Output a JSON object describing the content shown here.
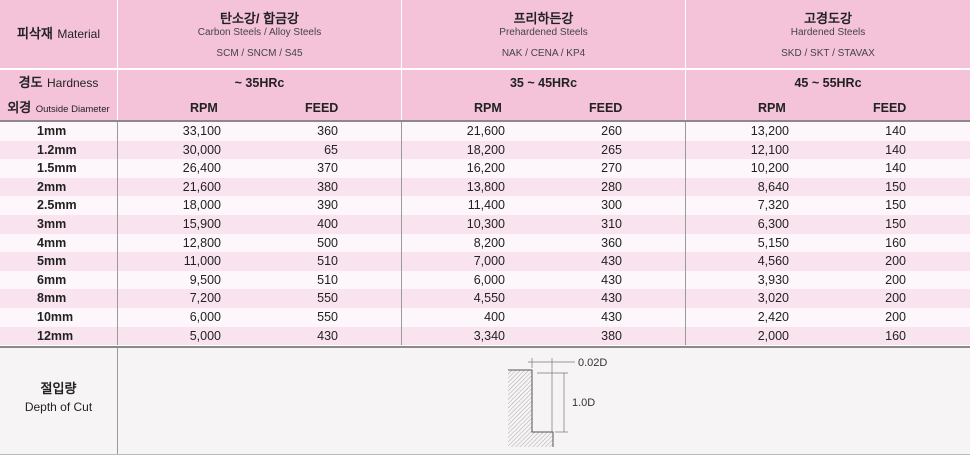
{
  "header": {
    "material_ko": "피삭재",
    "material_en": "Material",
    "hardness_ko": "경도",
    "hardness_en": "Hardness",
    "diameter_ko": "외경",
    "diameter_en": "Outside Diameter",
    "rpm": "RPM",
    "feed": "FEED"
  },
  "groups": [
    {
      "name_ko": "탄소강/ 합금강",
      "name_en": "Carbon Steels / Alloy Steels",
      "grades": "SCM / SNCM / S45",
      "hardness": "~ 35HRc"
    },
    {
      "name_ko": "프리하든강",
      "name_en": "Prehardened Steels",
      "grades": "NAK / CENA / KP4",
      "hardness": "35 ~ 45HRc"
    },
    {
      "name_ko": "고경도강",
      "name_en": "Hardened Steels",
      "grades": "SKD / SKT / STAVAX",
      "hardness": "45 ~ 55HRc"
    }
  ],
  "rows": [
    {
      "d": "1mm",
      "v": [
        "33,100",
        "360",
        "21,600",
        "260",
        "13,200",
        "140"
      ]
    },
    {
      "d": "1.2mm",
      "v": [
        "30,000",
        "65",
        "18,200",
        "265",
        "12,100",
        "140"
      ]
    },
    {
      "d": "1.5mm",
      "v": [
        "26,400",
        "370",
        "16,200",
        "270",
        "10,200",
        "140"
      ]
    },
    {
      "d": "2mm",
      "v": [
        "21,600",
        "380",
        "13,800",
        "280",
        "8,640",
        "150"
      ]
    },
    {
      "d": "2.5mm",
      "v": [
        "18,000",
        "390",
        "11,400",
        "300",
        "7,320",
        "150"
      ]
    },
    {
      "d": "3mm",
      "v": [
        "15,900",
        "400",
        "10,300",
        "310",
        "6,300",
        "150"
      ]
    },
    {
      "d": "4mm",
      "v": [
        "12,800",
        "500",
        "8,200",
        "360",
        "5,150",
        "160"
      ]
    },
    {
      "d": "5mm",
      "v": [
        "11,000",
        "510",
        "7,000",
        "430",
        "4,560",
        "200"
      ]
    },
    {
      "d": "6mm",
      "v": [
        "9,500",
        "510",
        "6,000",
        "430",
        "3,930",
        "200"
      ]
    },
    {
      "d": "8mm",
      "v": [
        "7,200",
        "550",
        "4,550",
        "430",
        "3,020",
        "200"
      ]
    },
    {
      "d": "10mm",
      "v": [
        "6,000",
        "550",
        "400",
        "430",
        "2,420",
        "200"
      ]
    },
    {
      "d": "12mm",
      "v": [
        "5,000",
        "430",
        "3,340",
        "380",
        "2,000",
        "160"
      ]
    }
  ],
  "depth": {
    "label_ko": "절입량",
    "label_en": "Depth of Cut",
    "dim_width": "0.02D",
    "dim_height": "1.0D"
  }
}
